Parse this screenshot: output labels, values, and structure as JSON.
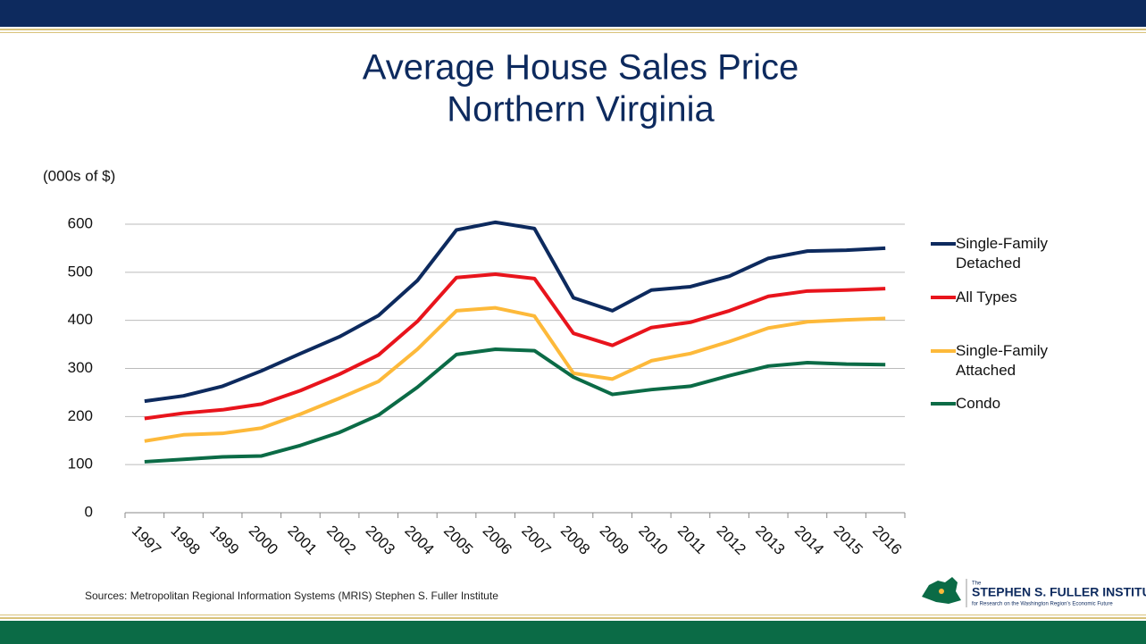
{
  "chart_data": {
    "type": "line",
    "title": "Average House Sales Price",
    "subtitle": "Northern Virginia",
    "y_label": "(000s of $)",
    "categories": [
      "1997",
      "1998",
      "1999",
      "2000",
      "2001",
      "2002",
      "2003",
      "2004",
      "2005",
      "2006",
      "2007",
      "2008",
      "2009",
      "2010",
      "2011",
      "2012",
      "2013",
      "2014",
      "2015",
      "2016"
    ],
    "series": [
      {
        "name": "Single-Family Detached",
        "color": "#0d2a5e",
        "values": [
          232,
          243,
          263,
          295,
          331,
          366,
          410,
          483,
          588,
          604,
          591,
          447,
          420,
          463,
          470,
          492,
          529,
          544,
          546,
          550
        ]
      },
      {
        "name": "All Types",
        "color": "#e8141c",
        "values": [
          196,
          207,
          214,
          226,
          254,
          288,
          328,
          398,
          489,
          496,
          487,
          373,
          348,
          385,
          396,
          420,
          450,
          461,
          463,
          466
        ]
      },
      {
        "name": "Single-Family Attached",
        "color": "#fdb93a",
        "values": [
          149,
          162,
          165,
          176,
          205,
          238,
          273,
          340,
          420,
          426,
          409,
          290,
          278,
          316,
          331,
          356,
          384,
          397,
          401,
          404
        ]
      },
      {
        "name": "Condo",
        "color": "#0b6b46",
        "values": [
          106,
          111,
          116,
          118,
          140,
          167,
          203,
          261,
          329,
          340,
          337,
          282,
          246,
          256,
          263,
          285,
          305,
          312,
          309,
          308
        ]
      }
    ],
    "ylim": [
      0,
      600
    ],
    "yticks": [
      0,
      100,
      200,
      300,
      400,
      500,
      600
    ],
    "grid": true,
    "legend": "right",
    "source": "Sources: Metropolitan Regional Information Systems (MRIS) Stephen S. Fuller Institute"
  },
  "logo": {
    "small": "The",
    "name": "STEPHEN S. FULLER INSTITUTE",
    "tagline": "for Research on the Washington Region's Economic Future"
  }
}
